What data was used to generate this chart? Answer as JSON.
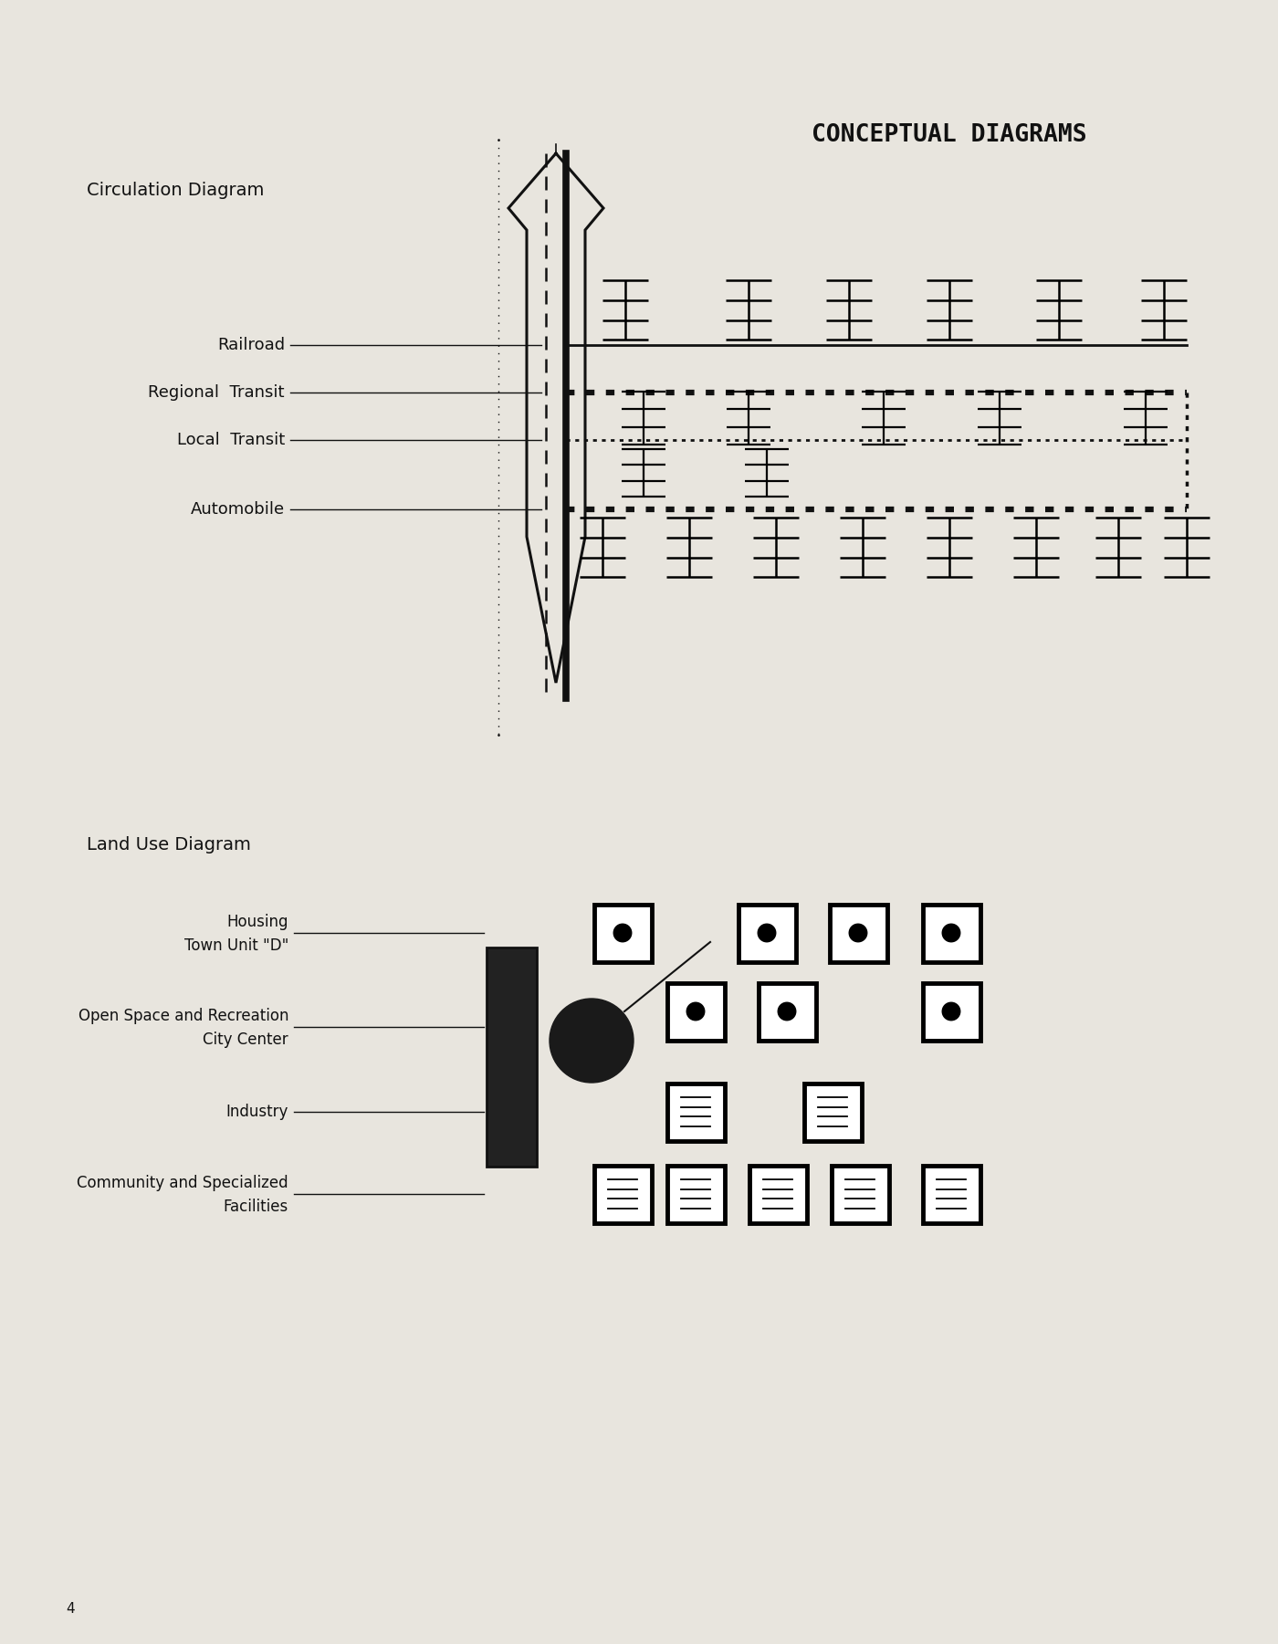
{
  "bg_color": "#e8e5de",
  "title": "CONCEPTUAL DIAGRAMS",
  "circ_label": "Circulation Diagram",
  "land_label": "Land Use Diagram",
  "tc": "#111111",
  "page_num": "4",
  "labels_circ": [
    "Railroad",
    "Regional  Transit",
    "Local  Transit",
    "Automobile"
  ],
  "labels_land_line1": [
    "Housing",
    "Open Space and Recreation",
    "Industry",
    "Community and Specialized"
  ],
  "labels_land_line2": [
    "Town Unit \"D\"",
    "City Center",
    "",
    "Facilities"
  ]
}
